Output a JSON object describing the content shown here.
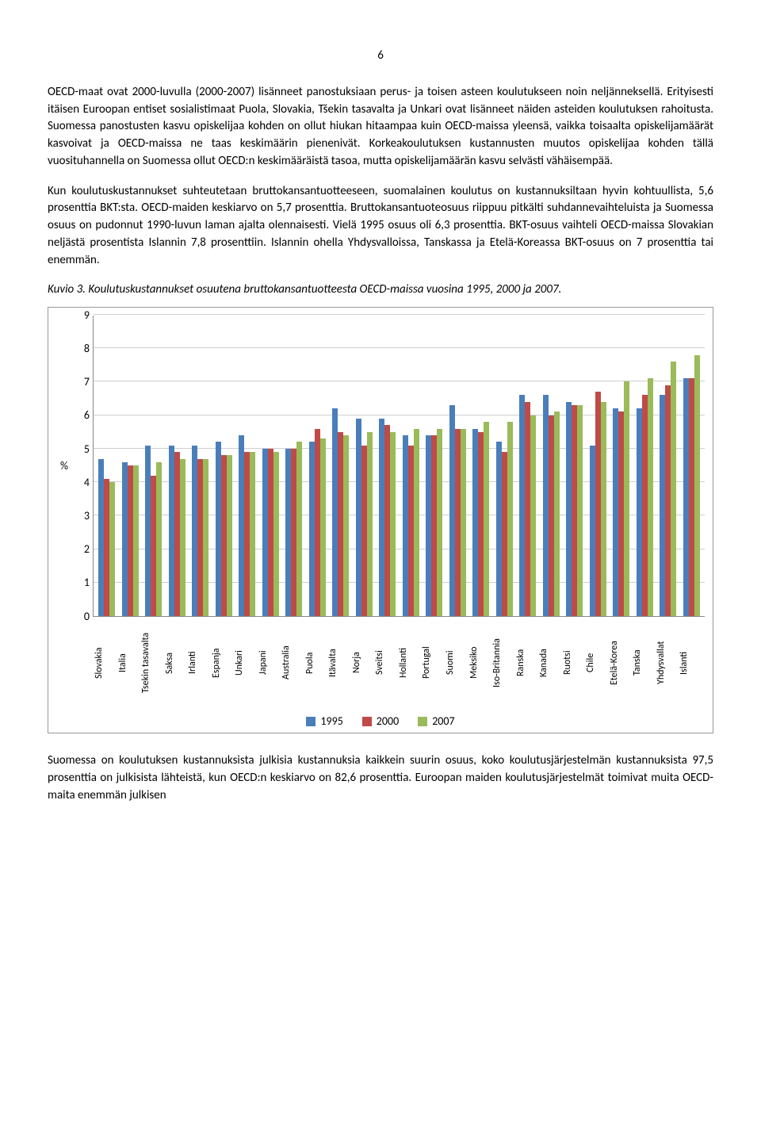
{
  "page_number": "6",
  "paragraphs": {
    "p1": "OECD-maat ovat 2000-luvulla (2000-2007) lisänneet panostuksiaan perus- ja toisen asteen koulutukseen noin neljänneksellä. Erityisesti itäisen Euroopan entiset sosialistimaat Puola, Slovakia, Tšekin tasavalta ja Unkari ovat lisänneet näiden asteiden koulutuksen rahoitusta. Suomessa panostusten kasvu opiskelijaa kohden on ollut hiukan hitaampaa kuin OECD-maissa yleensä, vaikka toisaalta opiskelijamäärät kasvoivat ja OECD-maissa ne taas keskimäärin pienenivät. Korkeakoulutuksen kustannusten muutos opiskelijaa kohden tällä vuosituhannella on Suomessa ollut OECD:n keskimääräistä tasoa, mutta opiskelijamäärän kasvu selvästi vähäisempää.",
    "p2": "Kun koulutuskustannukset suhteutetaan bruttokansantuotteeseen, suomalainen koulutus on kustannuksiltaan hyvin kohtuullista, 5,6 prosenttia BKT:sta. OECD-maiden keskiarvo on 5,7 prosenttia. Bruttokansantuoteosuus riippuu pitkälti suhdannevaihteluista ja Suomessa osuus on pudonnut 1990-luvun laman ajalta olennaisesti. Vielä 1995 osuus oli 6,3 prosenttia. BKT-osuus vaihteli OECD-maissa Slovakian neljästä prosentista Islannin 7,8 prosenttiin. Islannin ohella Yhdysvalloissa, Tanskassa ja Etelä-Koreassa BKT-osuus on 7 prosenttia tai enemmän.",
    "p3": "Suomessa on koulutuksen kustannuksista julkisia kustannuksia kaikkein suurin osuus, koko koulutusjärjestelmän kustannuksista 97,5 prosenttia on julkisista lähteistä, kun OECD:n keskiarvo on 82,6 prosenttia. Euroopan maiden koulutusjärjestelmät toimivat muita OECD-maita enemmän julkisen"
  },
  "figure": {
    "title": "Kuvio 3. Koulutuskustannukset osuutena bruttokansantuotteesta OECD-maissa vuosina 1995, 2000 ja 2007.",
    "ylabel": "%",
    "ymin": 0,
    "ymax": 9,
    "ytick_step": 1,
    "series_labels": {
      "a": "1995",
      "b": "2000",
      "c": "2007"
    },
    "series_colors": {
      "a": "#4a7ebb",
      "b": "#be4b48",
      "c": "#9abb59"
    },
    "grid_color": "#cfcfcf",
    "categories": [
      "Slovakia",
      "Italia",
      "Tsekin tasavalta",
      "Saksa",
      "Irlanti",
      "Espanja",
      "Unkari",
      "Japani",
      "Australia",
      "Puola",
      "Itävalta",
      "Norja",
      "Sveitsi",
      "Hollanti",
      "Portugal",
      "Suomi",
      "Meksiko",
      "Iso-Britannia",
      "Ranska",
      "Kanada",
      "Ruotsi",
      "Chile",
      "Etelä-Korea",
      "Tanska",
      "Yhdysvallat",
      "Islanti"
    ],
    "values": {
      "a": [
        4.7,
        4.6,
        5.1,
        5.1,
        5.1,
        5.2,
        5.4,
        5.0,
        5.0,
        5.2,
        6.2,
        5.9,
        5.9,
        5.4,
        5.4,
        6.3,
        5.6,
        5.2,
        6.6,
        6.6,
        6.4,
        5.1,
        6.2,
        6.2,
        6.6,
        7.1
      ],
      "b": [
        4.1,
        4.5,
        4.2,
        4.9,
        4.7,
        4.8,
        4.9,
        5.0,
        5.0,
        5.6,
        5.5,
        5.1,
        5.7,
        5.1,
        5.4,
        5.6,
        5.5,
        4.9,
        6.4,
        6.0,
        6.3,
        6.7,
        6.1,
        6.6,
        6.9,
        7.1
      ],
      "c": [
        4.0,
        4.5,
        4.6,
        4.7,
        4.7,
        4.8,
        4.9,
        4.9,
        5.2,
        5.3,
        5.4,
        5.5,
        5.5,
        5.6,
        5.6,
        5.6,
        5.8,
        5.8,
        6.0,
        6.1,
        6.3,
        6.4,
        7.0,
        7.1,
        7.6,
        7.8
      ]
    }
  }
}
